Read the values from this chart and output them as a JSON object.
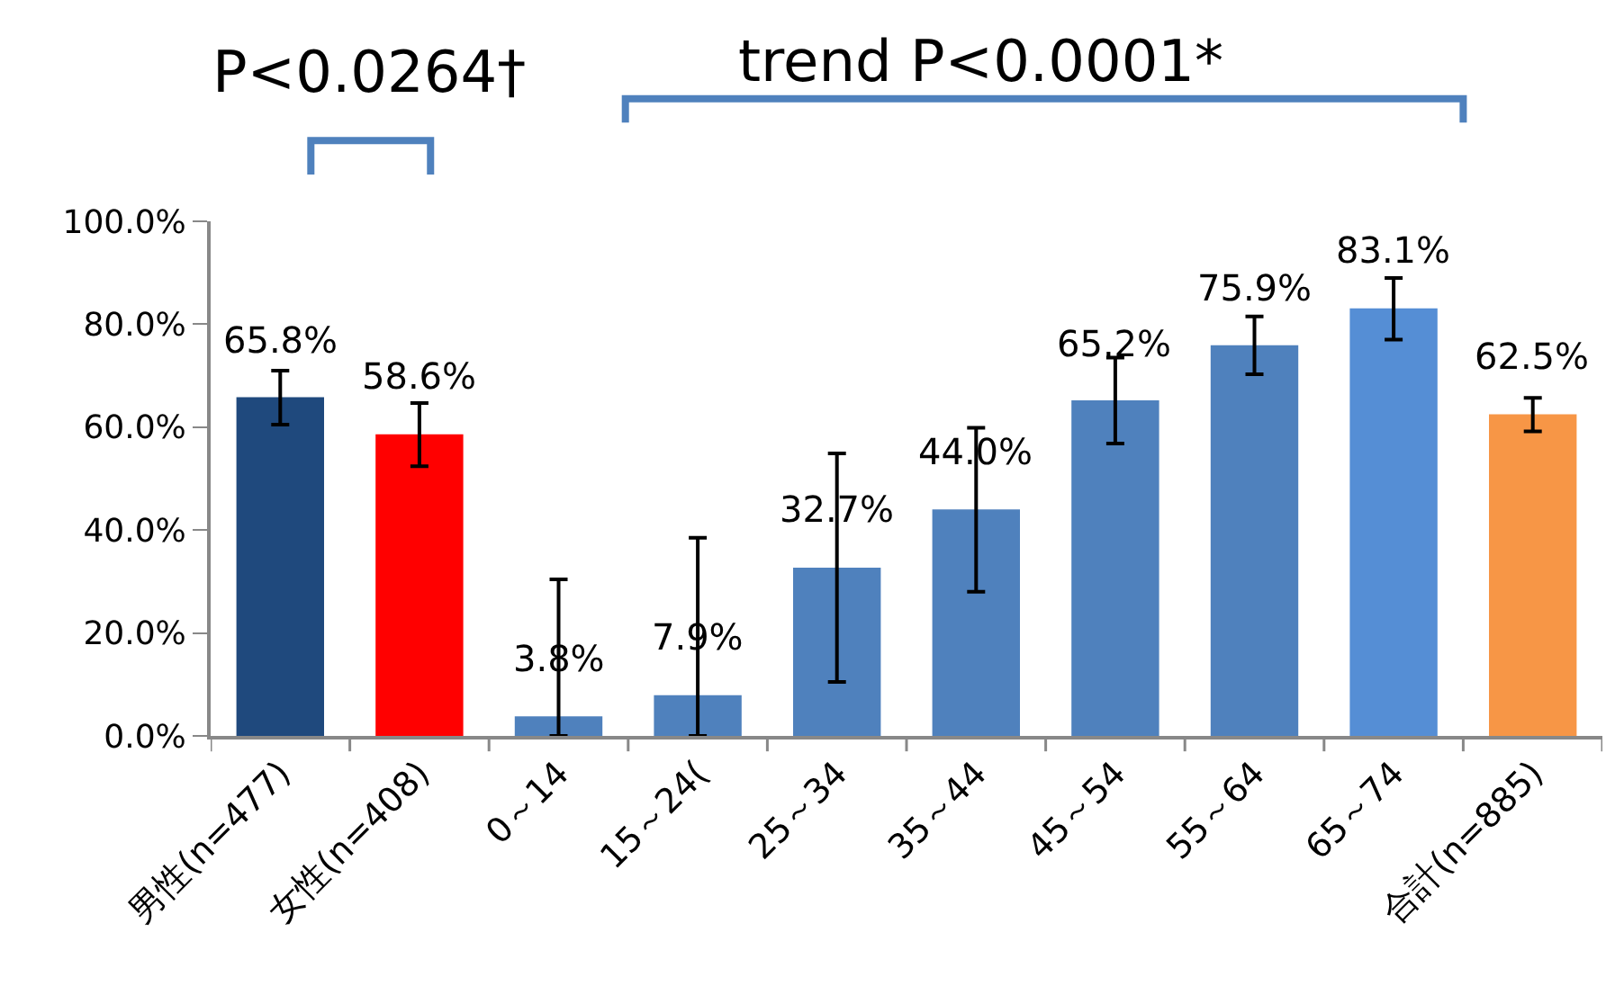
{
  "chart_data": {
    "type": "bar",
    "categories": [
      "男性(n=477)",
      "女性(n=408)",
      "0～14",
      "15～24(",
      "25～34",
      "35～44",
      "45～54",
      "55～64",
      "65～74",
      "合計(n=885)"
    ],
    "values": [
      65.8,
      58.6,
      3.8,
      7.9,
      32.7,
      44.0,
      65.2,
      75.9,
      83.1,
      62.5
    ],
    "colors": [
      "#1f497d",
      "#ff0000",
      "#4f81bd",
      "#4f81bd",
      "#4f81bd",
      "#4f81bd",
      "#4f81bd",
      "#4f81bd",
      "#558ed5",
      "#f79646"
    ],
    "value_labels": [
      "65.8%",
      "58.6%",
      "3.8%",
      "7.9%",
      "32.7%",
      "44.0%",
      "65.2%",
      "75.9%",
      "83.1%",
      "62.5%"
    ],
    "errors": [
      [
        60.5,
        71.0
      ],
      [
        52.4,
        64.7
      ],
      [
        0,
        30.4
      ],
      [
        0,
        38.5
      ],
      [
        10.5,
        54.9
      ],
      [
        28.0,
        59.9
      ],
      [
        56.8,
        73.5
      ],
      [
        70.3,
        81.5
      ],
      [
        77.0,
        89.0
      ],
      [
        59.2,
        65.7
      ]
    ],
    "ylim": [
      0,
      100
    ],
    "yticks": [
      {
        "value": 0,
        "label": "0.0%"
      },
      {
        "value": 20,
        "label": "20.0%"
      },
      {
        "value": 40,
        "label": "40.0%"
      },
      {
        "value": 60,
        "label": "60.0%"
      },
      {
        "value": 80,
        "label": "80.0%"
      },
      {
        "value": 100,
        "label": "100.0%"
      }
    ],
    "grid": false,
    "annotations": [
      "P<0.0264†",
      "trend P<0.0001*"
    ]
  }
}
